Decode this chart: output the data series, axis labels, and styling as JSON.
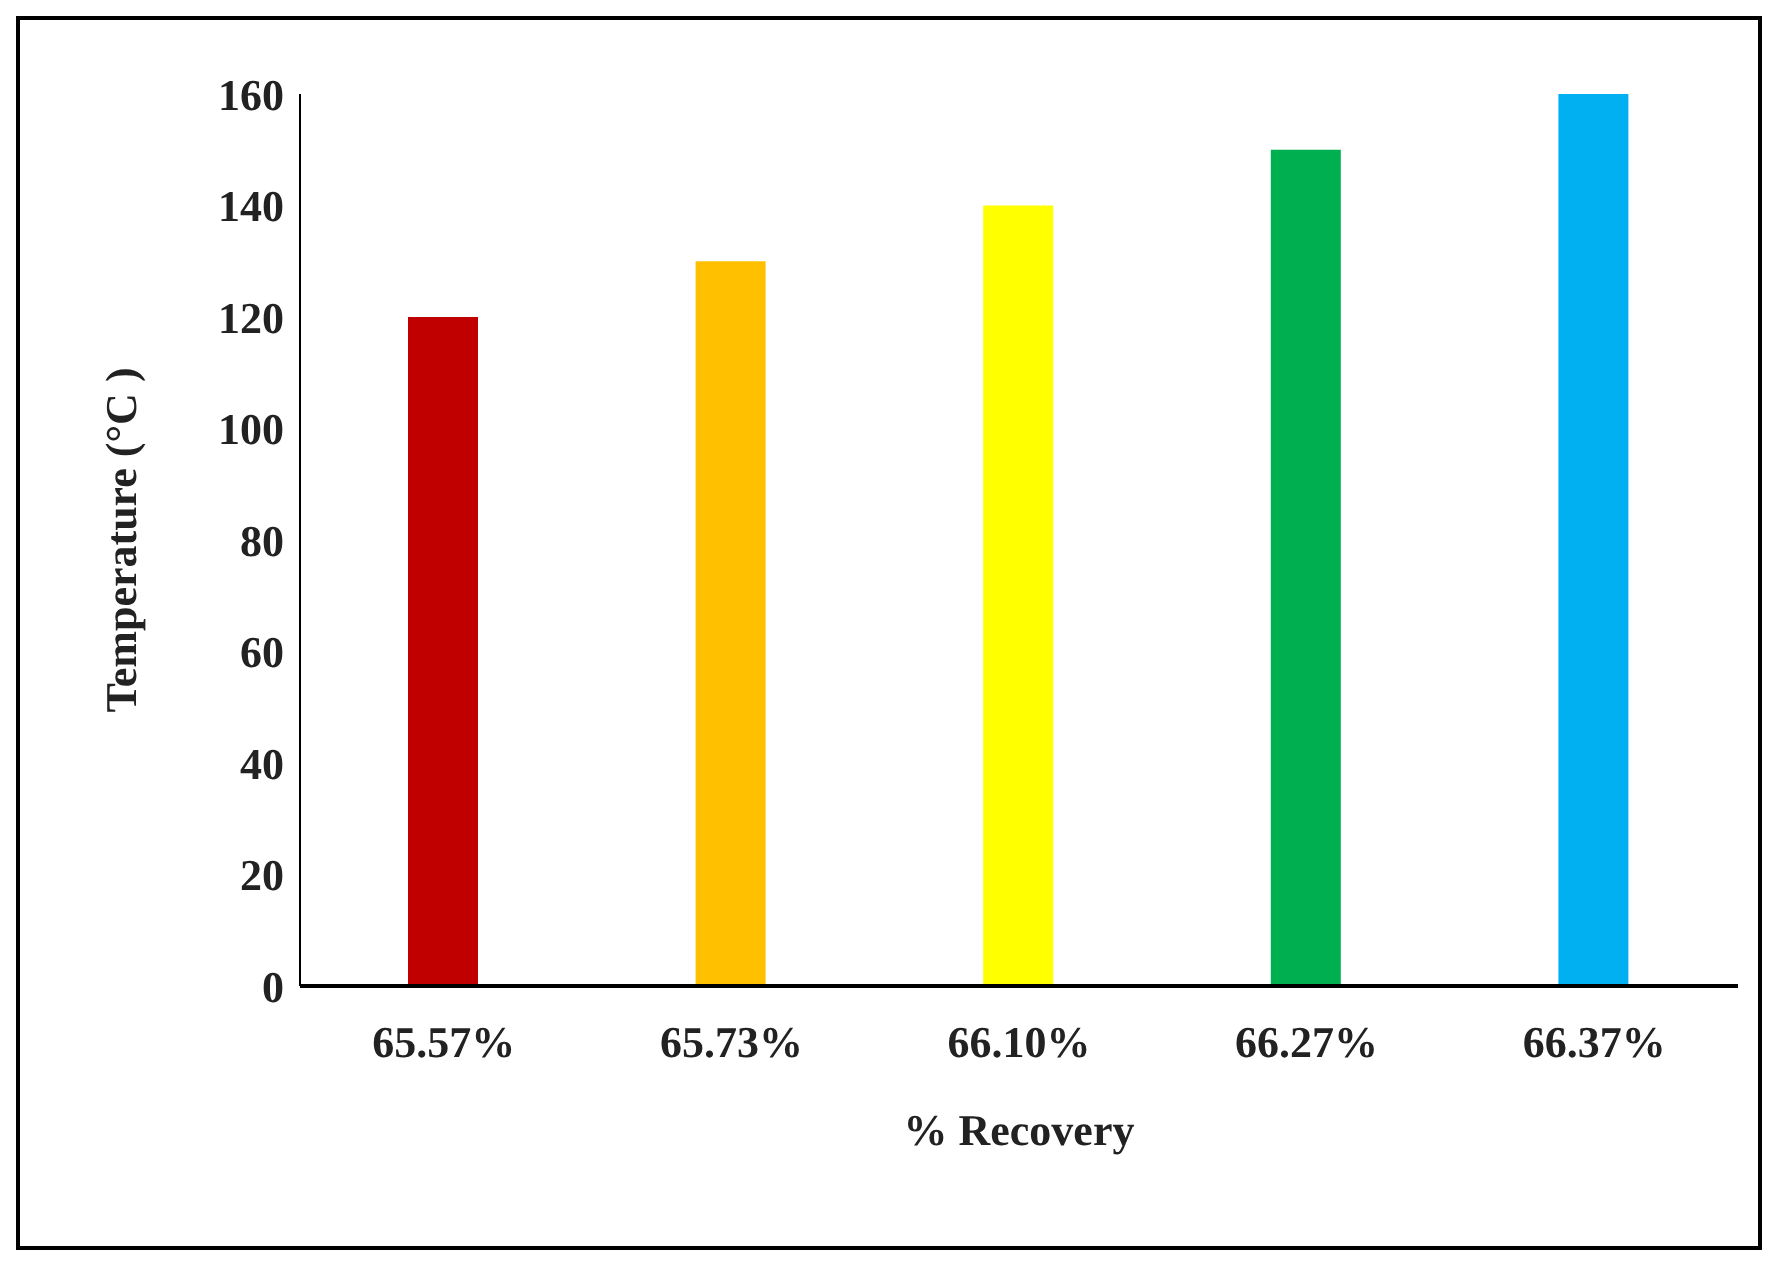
{
  "chart_data": {
    "type": "bar",
    "xlabel": "% Recovery",
    "ylabel": "Temperature (°C )",
    "categories": [
      "65.57%",
      "65.73%",
      "66.10%",
      "66.27%",
      "66.37%"
    ],
    "values": [
      120,
      130,
      140,
      150,
      160
    ],
    "colors": [
      "#c00000",
      "#ffc000",
      "#ffff00",
      "#00b050",
      "#00b0f0"
    ],
    "ylim": [
      0,
      160
    ],
    "yticks": [
      0,
      20,
      40,
      60,
      80,
      100,
      120,
      140,
      160
    ],
    "grid": false
  }
}
